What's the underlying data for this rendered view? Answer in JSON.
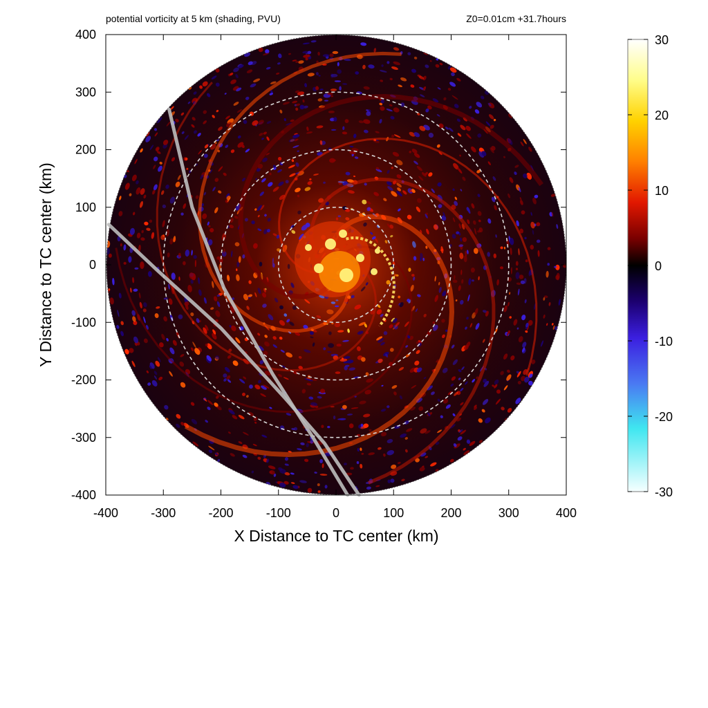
{
  "figure": {
    "title_left": "potential vorticity at 5 km (shading, PVU)",
    "title_right": "Z0=0.01cm  +31.7hours"
  },
  "chart_data": {
    "type": "heatmap",
    "title": "potential vorticity at 5 km (shading, PVU)",
    "annotation": "Z0=0.01cm  +31.7hours",
    "xlabel": "X Distance to TC center (km)",
    "ylabel": "Y Distance to TC center (km)",
    "xlim": [
      -400,
      400
    ],
    "ylim": [
      -400,
      400
    ],
    "xticks": [
      "-400",
      "-300",
      "-200",
      "-100",
      "0",
      "100",
      "200",
      "300",
      "400"
    ],
    "yticks": [
      "400",
      "300",
      "200",
      "100",
      "0",
      "-100",
      "-200",
      "-300",
      "-400"
    ],
    "domain_radius_km": 400,
    "range_rings_km": [
      100,
      200,
      300
    ],
    "overlay_tracks": [
      {
        "style": "light gray line",
        "points": [
          [
            -290,
            270
          ],
          [
            -250,
            100
          ],
          [
            -195,
            -40
          ],
          [
            -110,
            -190
          ],
          [
            -40,
            -300
          ],
          [
            20,
            -400
          ]
        ]
      },
      {
        "style": "light gray line",
        "points": [
          [
            -395,
            70
          ],
          [
            -310,
            -10
          ],
          [
            -200,
            -110
          ],
          [
            -90,
            -230
          ],
          [
            -20,
            -310
          ],
          [
            40,
            -400
          ]
        ]
      }
    ],
    "colorbar": {
      "range": [
        -30,
        30
      ],
      "ticks": [
        "30",
        "20",
        "10",
        "0",
        "-10",
        "-20",
        "-30"
      ],
      "colors": [
        "#ffffff",
        "#fffd6a",
        "#ffcc00",
        "#ff7a00",
        "#e41a00",
        "#8a0000",
        "#000000",
        "#1a0060",
        "#3a1ad8",
        "#4a6cf0",
        "#40e8f0",
        "#f4ffff"
      ]
    },
    "grid": false
  }
}
